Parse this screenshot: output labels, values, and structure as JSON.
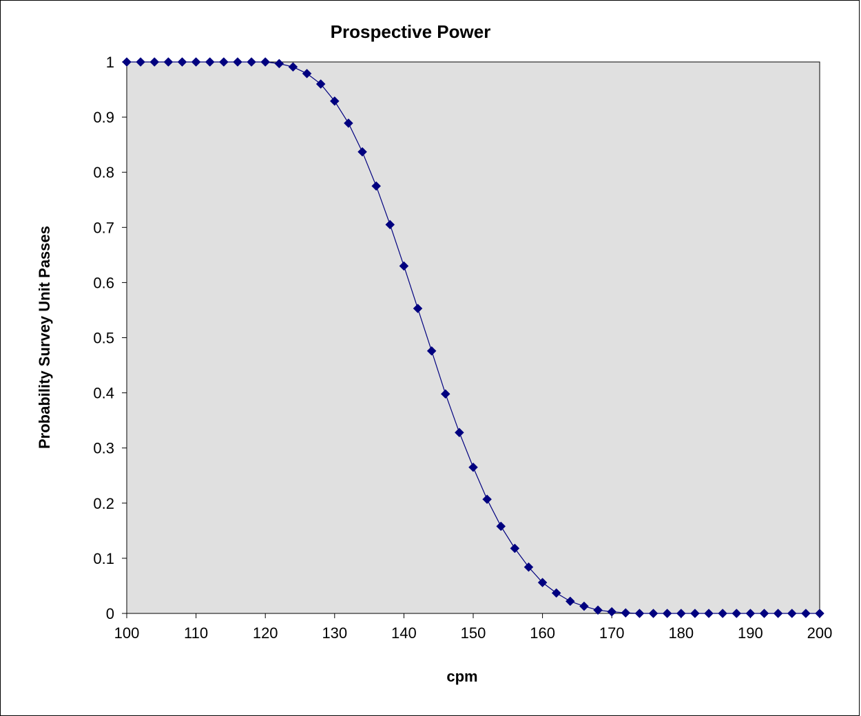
{
  "chart_data": {
    "type": "line",
    "title": "Prospective Power",
    "xlabel": "cpm",
    "ylabel": "Probability Survey Unit Passes",
    "xlim": [
      100,
      200
    ],
    "ylim": [
      0,
      1
    ],
    "x_ticks": [
      "100",
      "110",
      "120",
      "130",
      "140",
      "150",
      "160",
      "170",
      "180",
      "190",
      "200"
    ],
    "y_ticks": [
      "0",
      "0.1",
      "0.2",
      "0.3",
      "0.4",
      "0.5",
      "0.6",
      "0.7",
      "0.8",
      "0.9",
      "1"
    ],
    "grid": false,
    "legend": "none",
    "plot_background": "#e0e0e0",
    "series_color": "#00007f",
    "marker": "diamond",
    "series": [
      {
        "x": [
          100,
          102,
          104,
          106,
          108,
          110,
          112,
          114,
          116,
          118,
          120,
          122,
          124,
          126,
          128,
          130,
          132,
          134,
          136,
          138,
          140,
          142,
          144,
          146,
          148,
          150,
          152,
          154,
          156,
          158,
          160,
          162,
          164,
          166,
          168,
          170,
          172,
          174,
          176,
          178,
          180,
          182,
          184,
          186,
          188,
          190,
          192,
          194,
          196,
          198,
          200
        ],
        "values": [
          1.0,
          1.0,
          1.0,
          1.0,
          1.0,
          1.0,
          1.0,
          1.0,
          1.0,
          1.0,
          1.0,
          0.997,
          0.991,
          0.979,
          0.96,
          0.929,
          0.889,
          0.837,
          0.775,
          0.705,
          0.63,
          0.553,
          0.476,
          0.398,
          0.328,
          0.265,
          0.207,
          0.158,
          0.118,
          0.084,
          0.056,
          0.037,
          0.022,
          0.013,
          0.006,
          0.003,
          0.001,
          0.0,
          0.0,
          0.0,
          0.0,
          0.0,
          0.0,
          0.0,
          0.0,
          0.0,
          0.0,
          0.0,
          0.0,
          0.0,
          0.0
        ]
      }
    ]
  }
}
